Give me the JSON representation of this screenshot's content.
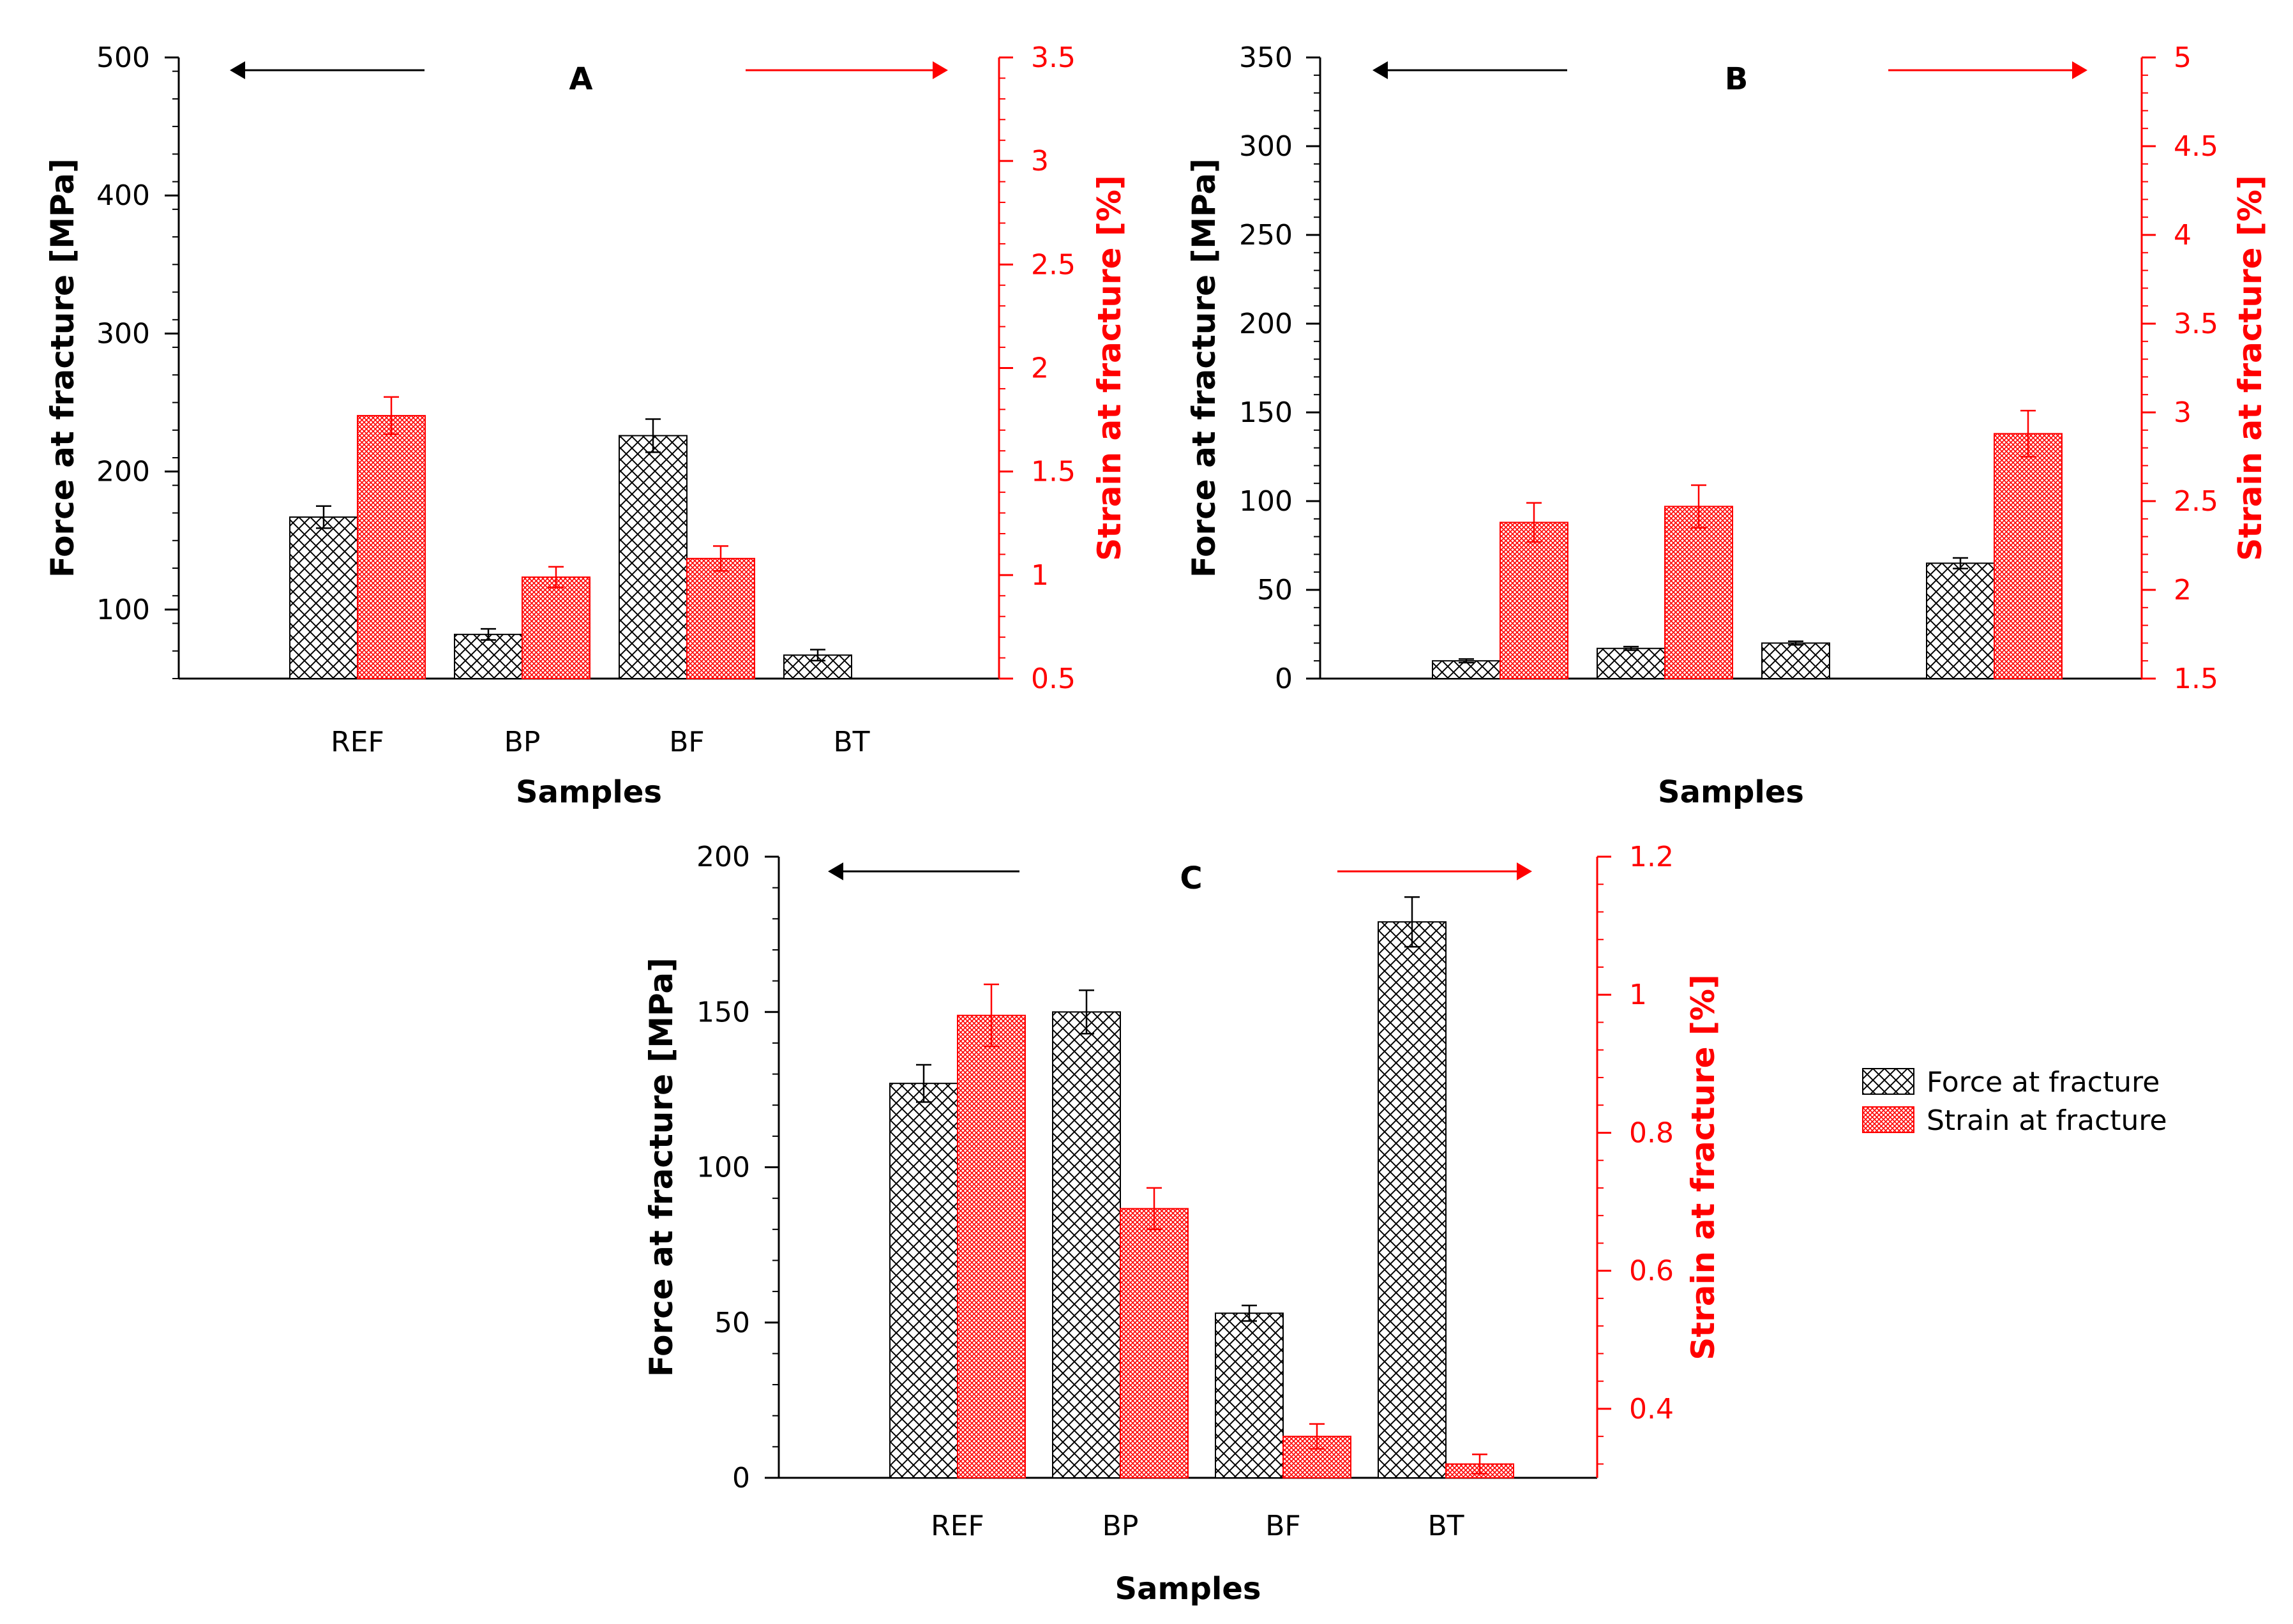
{
  "legend": {
    "force_label": "Force at fracture",
    "strain_label": "Strain at fracture"
  },
  "colors": {
    "force": "#000000",
    "strain": "#ff0000"
  },
  "chart_data": [
    {
      "panel": "A",
      "type": "bar",
      "title": "A",
      "xlabel": "Samples",
      "ylabel": "Force at fracture [MPa]",
      "ylabel_right": "Strain at fracture [%]",
      "categories": [
        "REF",
        "BP",
        "BF",
        "BT"
      ],
      "ylim": [
        50,
        500
      ],
      "yticks": [
        100,
        200,
        300,
        400,
        500
      ],
      "ylim_right": [
        0.5,
        3.5
      ],
      "yticks_right": [
        0.5,
        1,
        1.5,
        2,
        2.5,
        3,
        3.5
      ],
      "yticks_right_labels": [
        "0.5",
        "1",
        "1.5",
        "2",
        "2.5",
        "3",
        "3.5"
      ],
      "series": [
        {
          "name": "Force at fracture",
          "axis": "left",
          "values": [
            167,
            82,
            226,
            67
          ],
          "errors": [
            8,
            4,
            12,
            4
          ]
        },
        {
          "name": "Strain at fracture",
          "axis": "right",
          "values": [
            1.77,
            0.99,
            1.08,
            null
          ],
          "errors": [
            0.09,
            0.05,
            0.06,
            null
          ]
        }
      ]
    },
    {
      "panel": "B",
      "type": "bar",
      "title": "B",
      "xlabel": "Samples",
      "ylabel": "Force at fracture [MPa]",
      "ylabel_right": "Strain at fracture [%]",
      "categories": [
        "",
        "",
        "",
        ""
      ],
      "ylim": [
        0,
        350
      ],
      "yticks": [
        0,
        50,
        100,
        150,
        200,
        250,
        300,
        350
      ],
      "ylim_right": [
        1.5,
        5
      ],
      "yticks_right": [
        1.5,
        2,
        2.5,
        3,
        3.5,
        4,
        4.5,
        5
      ],
      "yticks_right_labels": [
        "1.5",
        "2",
        "2.5",
        "3",
        "3.5",
        "4",
        "4.5",
        "5"
      ],
      "series": [
        {
          "name": "Force at fracture",
          "axis": "left",
          "values": [
            10,
            17,
            20,
            65
          ],
          "errors": [
            1,
            1,
            1,
            3
          ]
        },
        {
          "name": "Strain at fracture",
          "axis": "right",
          "values": [
            2.38,
            2.47,
            null,
            2.88
          ],
          "errors": [
            0.11,
            0.12,
            null,
            0.13
          ]
        }
      ]
    },
    {
      "panel": "C",
      "type": "bar",
      "title": "C",
      "xlabel": "Samples",
      "ylabel": "Force at fracture [MPa]",
      "ylabel_right": "Strain at fracture [%]",
      "categories": [
        "REF",
        "BP",
        "BF",
        "BT"
      ],
      "ylim": [
        0,
        200
      ],
      "yticks": [
        0,
        50,
        100,
        150,
        200
      ],
      "ylim_right": [
        0.3,
        1.2
      ],
      "yticks_right": [
        0.4,
        0.6,
        0.8,
        1,
        1.2
      ],
      "yticks_right_labels": [
        "0.4",
        "0.6",
        "0.8",
        "1",
        "1.2"
      ],
      "series": [
        {
          "name": "Force at fracture",
          "axis": "left",
          "values": [
            127,
            150,
            53,
            179
          ],
          "errors": [
            6,
            7,
            2.5,
            8
          ]
        },
        {
          "name": "Strain at fracture",
          "axis": "right",
          "values": [
            0.97,
            0.69,
            0.36,
            0.32
          ],
          "errors": [
            0.045,
            0.03,
            0.018,
            0.014
          ]
        }
      ]
    }
  ]
}
